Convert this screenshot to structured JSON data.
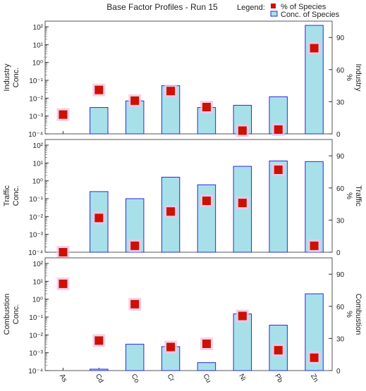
{
  "title": "Base Factor Profiles - Run 15",
  "legend": {
    "label": "Legend:",
    "items": [
      {
        "name": "% of Species",
        "color": "#cc1100",
        "marker": "square"
      },
      {
        "name": "Conc. of Species",
        "color": "#a8e0ea",
        "marker": "bar"
      }
    ]
  },
  "colors": {
    "bar_fill": "#a8e0ea",
    "bar_stroke": "#2a2ad8",
    "marker": "#cc1100",
    "marker_halo": "#f2c4e8",
    "panel_frame": "#555555",
    "grid": "#e6e6e6"
  },
  "chart_data": [
    {
      "type": "bar",
      "panel": "Industry",
      "left_label": [
        "Industry",
        "Conc."
      ],
      "right_label": [
        "Industry",
        "%"
      ],
      "y_scale": "log",
      "ylim": [
        0.0001,
        100
      ],
      "y_ticks": [
        "10⁻⁴",
        "10⁻³",
        "10⁻²",
        "10⁻¹",
        "10⁰",
        "10¹",
        "10²"
      ],
      "y2lim": [
        0,
        100
      ],
      "y2_ticks": [
        "0",
        "30",
        "60",
        "90"
      ],
      "categories": [
        "As",
        "Cd",
        "Co",
        "Cr",
        "Cu",
        "Ni",
        "Pb",
        "Zn"
      ],
      "series": [
        {
          "name": "Conc. of Species",
          "axis": "left",
          "values": [
            null,
            0.003,
            0.007,
            0.05,
            0.003,
            0.004,
            0.012,
            120
          ]
        },
        {
          "name": "% of Species",
          "axis": "right",
          "values": [
            18,
            41,
            31,
            40,
            25,
            3,
            4,
            80
          ]
        }
      ]
    },
    {
      "type": "bar",
      "panel": "Traffic",
      "left_label": [
        "Traffic",
        "Conc."
      ],
      "right_label": [
        "Traffic",
        "%"
      ],
      "y_scale": "log",
      "ylim": [
        0.0001,
        100
      ],
      "y_ticks": [
        "10⁻⁴",
        "10⁻³",
        "10⁻²",
        "10⁻¹",
        "10⁰",
        "10¹",
        "10²"
      ],
      "y2lim": [
        0,
        100
      ],
      "y2_ticks": [
        "0",
        "30",
        "60",
        "90"
      ],
      "categories": [
        "As",
        "Cd",
        "Co",
        "Cr",
        "Cu",
        "Ni",
        "Pb",
        "Zn"
      ],
      "series": [
        {
          "name": "Conc. of Species",
          "axis": "left",
          "values": [
            null,
            0.25,
            0.1,
            1.6,
            0.6,
            6.5,
            13,
            12
          ]
        },
        {
          "name": "% of Species",
          "axis": "right",
          "values": [
            0,
            32,
            6,
            38,
            48,
            46,
            77,
            6
          ]
        }
      ]
    },
    {
      "type": "bar",
      "panel": "Combustion",
      "left_label": [
        "Combustion",
        "Conc."
      ],
      "right_label": [
        "Combustion",
        "%"
      ],
      "y_scale": "log",
      "ylim": [
        0.0001,
        100
      ],
      "y_ticks": [
        "10⁻⁴",
        "10⁻³",
        "10⁻²",
        "10⁻¹",
        "10⁰",
        "10¹",
        "10²"
      ],
      "y2lim": [
        0,
        100
      ],
      "y2_ticks": [
        "0",
        "30",
        "60",
        "90"
      ],
      "categories": [
        "As",
        "Cd",
        "Co",
        "Cr",
        "Cu",
        "Ni",
        "Pb",
        "Zn"
      ],
      "series": [
        {
          "name": "Conc. of Species",
          "axis": "left",
          "values": [
            null,
            0.00012,
            0.003,
            0.0022,
            0.00028,
            0.15,
            0.035,
            2
          ]
        },
        {
          "name": "% of Species",
          "axis": "right",
          "values": [
            81,
            28,
            62,
            22,
            25,
            51,
            19,
            12
          ]
        }
      ]
    }
  ]
}
